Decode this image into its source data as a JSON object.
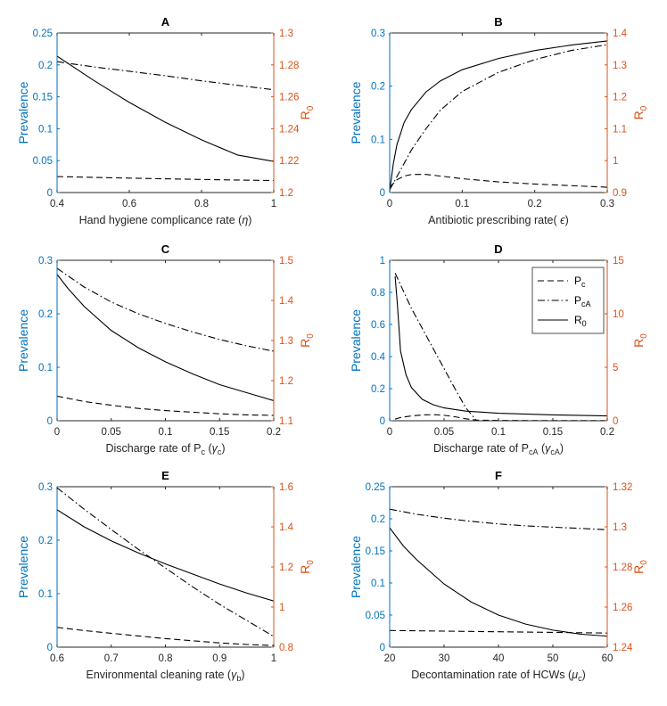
{
  "colors": {
    "left_axis": "#0072BD",
    "right_axis": "#D95319",
    "lines": "#000000"
  },
  "legend": {
    "entries": [
      {
        "label": "P",
        "sub": "c",
        "style": "dashed"
      },
      {
        "label": "P",
        "sub": "cA",
        "style": "dashdot"
      },
      {
        "label": "R",
        "sub": "0",
        "style": "solid"
      }
    ]
  },
  "chart_data": [
    {
      "panel": "A",
      "type": "line",
      "title": "A",
      "xlabel": {
        "main": "Hand hygiene complicance rate (",
        "sym": "η",
        "tail": ")"
      },
      "ylabel_left": "Prevalence",
      "ylabel_right": {
        "main": "R",
        "sub": "0"
      },
      "xlim": [
        0.4,
        1
      ],
      "xticks": [
        0.4,
        0.6,
        0.8,
        1
      ],
      "xtick_labels": [
        "0.4",
        "0.6",
        "0.8",
        "1"
      ],
      "ylim_left": [
        0,
        0.25
      ],
      "yticks_left": [
        0,
        0.05,
        0.1,
        0.15,
        0.2,
        0.25
      ],
      "ytick_labels_left": [
        "0",
        "0.05",
        "0.1",
        "0.15",
        "0.2",
        "0.25"
      ],
      "ylim_right": [
        1.2,
        1.3
      ],
      "yticks_right": [
        1.2,
        1.22,
        1.24,
        1.26,
        1.28,
        1.3
      ],
      "ytick_labels_right": [
        "1.2",
        "1.22",
        "1.24",
        "1.26",
        "1.28",
        "1.3"
      ],
      "series": [
        {
          "name": "Pc",
          "style": "dashed",
          "axis": "left",
          "x": [
            0.4,
            0.5,
            0.6,
            0.7,
            0.8,
            0.9,
            1.0
          ],
          "y": [
            0.025,
            0.0238,
            0.0226,
            0.0215,
            0.0205,
            0.0196,
            0.0188
          ]
        },
        {
          "name": "PcA",
          "style": "dashdot",
          "axis": "left",
          "x": [
            0.4,
            0.5,
            0.6,
            0.7,
            0.8,
            0.9,
            1.0
          ],
          "y": [
            0.205,
            0.197,
            0.19,
            0.183,
            0.175,
            0.168,
            0.161
          ]
        },
        {
          "name": "R0",
          "style": "solid",
          "axis": "right",
          "x": [
            0.4,
            0.5,
            0.6,
            0.7,
            0.8,
            0.9,
            1.0
          ],
          "y": [
            1.2855,
            1.2705,
            1.2565,
            1.244,
            1.233,
            1.2235,
            1.2195
          ]
        }
      ]
    },
    {
      "panel": "B",
      "type": "line",
      "title": "B",
      "xlabel": {
        "main": "Antibiotic prescribing rate( ",
        "sym": "ϵ",
        "tail": ")"
      },
      "ylabel_left": "Prevalence",
      "ylabel_right": {
        "main": "R",
        "sub": "0"
      },
      "xlim": [
        0,
        0.3
      ],
      "xticks": [
        0,
        0.1,
        0.2,
        0.3
      ],
      "xtick_labels": [
        "0",
        "0.1",
        "0.2",
        "0.3"
      ],
      "ylim_left": [
        0,
        0.3
      ],
      "yticks_left": [
        0,
        0.1,
        0.2,
        0.3
      ],
      "ytick_labels_left": [
        "0",
        "0.1",
        "0.2",
        "0.3"
      ],
      "ylim_right": [
        0.9,
        1.4
      ],
      "yticks_right": [
        0.9,
        1,
        1.1,
        1.2,
        1.3,
        1.4
      ],
      "ytick_labels_right": [
        "0.9",
        "1",
        "1.1",
        "1.2",
        "1.3",
        "1.4"
      ],
      "series": [
        {
          "name": "Pc",
          "style": "dashed",
          "axis": "left",
          "x": [
            0,
            0.01,
            0.02,
            0.03,
            0.05,
            0.07,
            0.1,
            0.15,
            0.2,
            0.25,
            0.3
          ],
          "y": [
            0.01,
            0.024,
            0.031,
            0.034,
            0.034,
            0.031,
            0.026,
            0.02,
            0.016,
            0.013,
            0.01
          ]
        },
        {
          "name": "PcA",
          "style": "dashdot",
          "axis": "left",
          "x": [
            0,
            0.01,
            0.02,
            0.03,
            0.05,
            0.07,
            0.1,
            0.15,
            0.2,
            0.25,
            0.3
          ],
          "y": [
            0.005,
            0.03,
            0.055,
            0.08,
            0.12,
            0.155,
            0.19,
            0.226,
            0.25,
            0.267,
            0.278
          ]
        },
        {
          "name": "R0",
          "style": "solid",
          "axis": "right",
          "x": [
            0,
            0.005,
            0.01,
            0.02,
            0.03,
            0.05,
            0.07,
            0.1,
            0.15,
            0.2,
            0.25,
            0.3
          ],
          "y": [
            0.905,
            0.99,
            1.05,
            1.12,
            1.16,
            1.215,
            1.25,
            1.285,
            1.32,
            1.345,
            1.362,
            1.375
          ]
        }
      ]
    },
    {
      "panel": "C",
      "type": "line",
      "title": "C",
      "xlabel": {
        "main": "Discharge rate of P",
        "sub": "c",
        "mid": " (",
        "sym": "γ",
        "sym_sub": "c",
        "tail": ")"
      },
      "ylabel_left": "Prevalence",
      "ylabel_right": {
        "main": "R",
        "sub": "0"
      },
      "xlim": [
        0,
        0.2
      ],
      "xticks": [
        0,
        0.05,
        0.1,
        0.15,
        0.2
      ],
      "xtick_labels": [
        "0",
        "0.05",
        "0.1",
        "0.15",
        "0.2"
      ],
      "ylim_left": [
        0,
        0.3
      ],
      "yticks_left": [
        0,
        0.1,
        0.2,
        0.3
      ],
      "ytick_labels_left": [
        "0",
        "0.1",
        "0.2",
        "0.3"
      ],
      "ylim_right": [
        1.1,
        1.5
      ],
      "yticks_right": [
        1.1,
        1.2,
        1.3,
        1.4,
        1.5
      ],
      "ytick_labels_right": [
        "1.1",
        "1.2",
        "1.3",
        "1.4",
        "1.5"
      ],
      "series": [
        {
          "name": "Pc",
          "style": "dashed",
          "axis": "left",
          "x": [
            0,
            0.025,
            0.05,
            0.075,
            0.1,
            0.125,
            0.15,
            0.175,
            0.2
          ],
          "y": [
            0.046,
            0.036,
            0.029,
            0.023,
            0.019,
            0.016,
            0.013,
            0.011,
            0.01
          ]
        },
        {
          "name": "PcA",
          "style": "dashdot",
          "axis": "left",
          "x": [
            0,
            0.025,
            0.05,
            0.075,
            0.1,
            0.125,
            0.15,
            0.175,
            0.2
          ],
          "y": [
            0.285,
            0.25,
            0.222,
            0.2,
            0.182,
            0.166,
            0.152,
            0.14,
            0.13
          ]
        },
        {
          "name": "R0",
          "style": "solid",
          "axis": "right",
          "x": [
            0,
            0.01,
            0.025,
            0.05,
            0.075,
            0.1,
            0.125,
            0.15,
            0.175,
            0.2
          ],
          "y": [
            1.465,
            1.43,
            1.385,
            1.325,
            1.282,
            1.247,
            1.217,
            1.19,
            1.17,
            1.15
          ]
        }
      ]
    },
    {
      "panel": "D",
      "type": "line",
      "title": "D",
      "xlabel": {
        "main": "Discharge rate of P",
        "sub": "cA",
        "mid": " (",
        "sym": "γ",
        "sym_sub": "cA",
        "tail": ")"
      },
      "ylabel_left": "Prevalence",
      "ylabel_right": {
        "main": "R",
        "sub": "0"
      },
      "xlim": [
        0,
        0.2
      ],
      "xticks": [
        0,
        0.05,
        0.1,
        0.15,
        0.2
      ],
      "xtick_labels": [
        "0",
        "0.05",
        "0.1",
        "0.15",
        "0.2"
      ],
      "ylim_left": [
        0,
        1
      ],
      "yticks_left": [
        0,
        0.2,
        0.4,
        0.6,
        0.8,
        1
      ],
      "ytick_labels_left": [
        "0",
        "0.2",
        "0.4",
        "0.6",
        "0.8",
        "1"
      ],
      "ylim_right": [
        0,
        15
      ],
      "yticks_right": [
        0,
        5,
        10,
        15
      ],
      "ytick_labels_right": [
        "0",
        "5",
        "10",
        "15"
      ],
      "series": [
        {
          "name": "Pc",
          "style": "dashed",
          "axis": "left",
          "x": [
            0.005,
            0.01,
            0.02,
            0.03,
            0.04,
            0.05,
            0.06,
            0.07,
            0.08,
            0.1,
            0.15,
            0.2
          ],
          "y": [
            0.01,
            0.02,
            0.03,
            0.036,
            0.038,
            0.034,
            0.025,
            0.012,
            0.004,
            0.002,
            0.001,
            0.001
          ]
        },
        {
          "name": "PcA",
          "style": "dashdot",
          "axis": "left",
          "x": [
            0.005,
            0.02,
            0.04,
            0.06,
            0.07,
            0.08,
            0.1,
            0.15,
            0.2
          ],
          "y": [
            0.92,
            0.7,
            0.45,
            0.2,
            0.08,
            0.0,
            0.0,
            0.0,
            0.0
          ]
        },
        {
          "name": "R0",
          "style": "solid",
          "axis": "right",
          "x": [
            0.005,
            0.007,
            0.01,
            0.015,
            0.02,
            0.03,
            0.04,
            0.05,
            0.07,
            0.1,
            0.15,
            0.2
          ],
          "y": [
            13.5,
            11.0,
            6.5,
            4.3,
            3.1,
            2.0,
            1.5,
            1.2,
            0.9,
            0.7,
            0.55,
            0.45
          ]
        }
      ]
    },
    {
      "panel": "E",
      "type": "line",
      "title": "E",
      "xlabel": {
        "main": "Environmental cleaning rate (",
        "sym": "γ",
        "sym_sub": "b",
        "tail": ")"
      },
      "ylabel_left": "Prevalence",
      "ylabel_right": {
        "main": "R",
        "sub": "0"
      },
      "xlim": [
        0.6,
        1
      ],
      "xticks": [
        0.6,
        0.7,
        0.8,
        0.9,
        1
      ],
      "xtick_labels": [
        "0.6",
        "0.7",
        "0.8",
        "0.9",
        "1"
      ],
      "ylim_left": [
        0,
        0.3
      ],
      "yticks_left": [
        0,
        0.1,
        0.2,
        0.3
      ],
      "ytick_labels_left": [
        "0",
        "0.1",
        "0.2",
        "0.3"
      ],
      "ylim_right": [
        0.8,
        1.6
      ],
      "yticks_right": [
        0.8,
        1,
        1.2,
        1.4,
        1.6
      ],
      "ytick_labels_right": [
        "0.8",
        "1",
        "1.2",
        "1.4",
        "1.6"
      ],
      "series": [
        {
          "name": "Pc",
          "style": "dashed",
          "axis": "left",
          "x": [
            0.6,
            0.65,
            0.7,
            0.75,
            0.8,
            0.85,
            0.9,
            0.95,
            1.0
          ],
          "y": [
            0.037,
            0.031,
            0.026,
            0.021,
            0.016,
            0.012,
            0.008,
            0.005,
            0.003
          ]
        },
        {
          "name": "PcA",
          "style": "dashdot",
          "axis": "left",
          "x": [
            0.6,
            0.65,
            0.7,
            0.75,
            0.8,
            0.85,
            0.9,
            0.95,
            1.0
          ],
          "y": [
            0.298,
            0.258,
            0.22,
            0.183,
            0.148,
            0.113,
            0.08,
            0.05,
            0.02
          ]
        },
        {
          "name": "R0",
          "style": "solid",
          "axis": "right",
          "x": [
            0.6,
            0.65,
            0.7,
            0.75,
            0.8,
            0.85,
            0.9,
            0.95,
            1.0
          ],
          "y": [
            1.485,
            1.4,
            1.33,
            1.27,
            1.215,
            1.165,
            1.115,
            1.07,
            1.03
          ]
        }
      ]
    },
    {
      "panel": "F",
      "type": "line",
      "title": "F",
      "xlabel": {
        "main": "Decontamination rate of HCWs (",
        "sym": "μ",
        "sym_sub": "c",
        "tail": ")"
      },
      "ylabel_left": "Prevalence",
      "ylabel_right": {
        "main": "R",
        "sub": "0"
      },
      "xlim": [
        20,
        60
      ],
      "xticks": [
        20,
        30,
        40,
        50,
        60
      ],
      "xtick_labels": [
        "20",
        "30",
        "40",
        "50",
        "60"
      ],
      "ylim_left": [
        0,
        0.25
      ],
      "yticks_left": [
        0,
        0.05,
        0.1,
        0.15,
        0.2,
        0.25
      ],
      "ytick_labels_left": [
        "0",
        "0.05",
        "0.1",
        "0.15",
        "0.2",
        "0.25"
      ],
      "ylim_right": [
        1.24,
        1.32
      ],
      "yticks_right": [
        1.24,
        1.26,
        1.28,
        1.3,
        1.32
      ],
      "ytick_labels_right": [
        "1.24",
        "1.26",
        "1.28",
        "1.3",
        "1.32"
      ],
      "series": [
        {
          "name": "Pc",
          "style": "dashed",
          "axis": "left",
          "x": [
            20,
            25,
            30,
            35,
            40,
            45,
            50,
            55,
            60
          ],
          "y": [
            0.026,
            0.0255,
            0.025,
            0.0245,
            0.024,
            0.0235,
            0.023,
            0.0225,
            0.022
          ]
        },
        {
          "name": "PcA",
          "style": "dashdot",
          "axis": "left",
          "x": [
            20,
            25,
            30,
            35,
            40,
            45,
            50,
            55,
            60
          ],
          "y": [
            0.215,
            0.207,
            0.201,
            0.196,
            0.192,
            0.189,
            0.187,
            0.185,
            0.183
          ]
        },
        {
          "name": "R0",
          "style": "solid",
          "axis": "right",
          "x": [
            20,
            22.5,
            25,
            30,
            35,
            40,
            45,
            50,
            55,
            60
          ],
          "y": [
            1.2995,
            1.2905,
            1.2835,
            1.2715,
            1.2625,
            1.256,
            1.2515,
            1.2485,
            1.2465,
            1.2455
          ]
        }
      ]
    }
  ]
}
